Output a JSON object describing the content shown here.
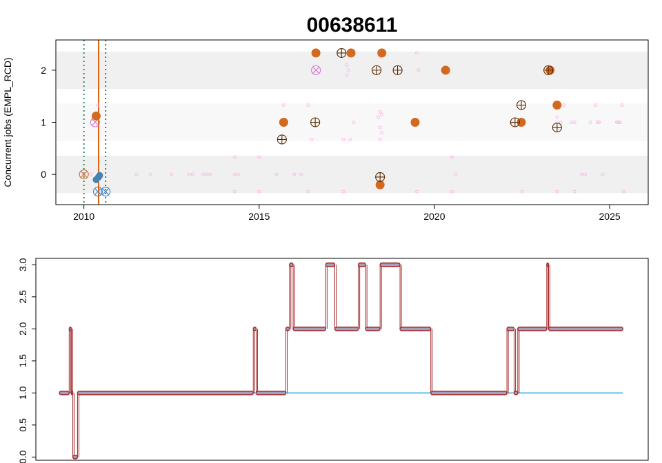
{
  "chart_data": [
    {
      "type": "scatter",
      "title": "00638611",
      "xlabel": "",
      "ylabel": "Concurrent jobs (EMPL_RCD)",
      "xlim": [
        2009.2,
        2026.1
      ],
      "ylim": [
        -0.58,
        2.58
      ],
      "x_ticks": [
        2010,
        2015,
        2020,
        2025
      ],
      "x_tick_labels": [
        "2010",
        "2015",
        "2020",
        "2025"
      ],
      "y_ticks": [
        0,
        1,
        2
      ],
      "y_tick_labels": [
        "0",
        "1",
        "2"
      ],
      "grid": false,
      "colors": {
        "band_dark": "#f0f0f0",
        "band_light": "#f8f8f8",
        "filled_orange": "#d2691e",
        "filled_blue": "#4682b4",
        "pink_small": "#ffb6ef",
        "violet_cross": "#da70d6",
        "teal_dotted": "#2e8b57",
        "orange_line": "#e06010",
        "crosshair": "#5a2a00"
      },
      "bands": [
        {
          "y0": -0.36,
          "y1": 0.36,
          "shade": "dark"
        },
        {
          "y0": 0.64,
          "y1": 1.36,
          "shade": "light"
        },
        {
          "y0": 1.64,
          "y1": 2.36,
          "shade": "dark"
        }
      ],
      "vlines": [
        {
          "x": 2010.0,
          "style": "dotted",
          "color": "teal"
        },
        {
          "x": 2010.42,
          "style": "solid",
          "color": "orange"
        },
        {
          "x": 2010.62,
          "style": "dotted",
          "color": "teal"
        }
      ],
      "series": [
        {
          "marker": "filled-orange",
          "points": [
            [
              2010.35,
              1.12
            ],
            [
              2016.62,
              2.33
            ],
            [
              2017.62,
              2.33
            ],
            [
              2018.5,
              2.33
            ],
            [
              2015.7,
              1.0
            ],
            [
              2019.45,
              1.0
            ],
            [
              2020.32,
              2.0
            ],
            [
              2022.48,
              1.0
            ],
            [
              2023.3,
              2.0
            ],
            [
              2023.5,
              1.33
            ],
            [
              2018.45,
              -0.2
            ]
          ]
        },
        {
          "marker": "filled-blue",
          "points": [
            [
              2010.35,
              -0.1
            ],
            [
              2010.45,
              -0.02
            ],
            [
              2010.42,
              -0.05
            ]
          ]
        },
        {
          "marker": "crosshair",
          "points": [
            [
              2017.35,
              2.33
            ],
            [
              2018.35,
              2.0
            ],
            [
              2018.95,
              2.0
            ],
            [
              2023.25,
              2.0
            ],
            [
              2016.6,
              1.0
            ],
            [
              2022.3,
              1.0
            ],
            [
              2022.48,
              1.33
            ],
            [
              2015.65,
              0.67
            ],
            [
              2023.5,
              0.9
            ],
            [
              2018.45,
              -0.05
            ]
          ]
        },
        {
          "marker": "circle-x-violet",
          "points": [
            [
              2016.62,
              2.0
            ],
            [
              2010.32,
              1.0
            ]
          ]
        },
        {
          "marker": "circle-x-orange",
          "points": [
            [
              2010.0,
              0.0
            ]
          ]
        },
        {
          "marker": "circle-x-blue",
          "points": [
            [
              2010.4,
              -0.33
            ],
            [
              2010.62,
              -0.33
            ]
          ]
        },
        {
          "marker": "pink-small",
          "points": [
            [
              2010.0,
              0.0
            ],
            [
              2010.2,
              0.0
            ],
            [
              2010.4,
              1.33
            ],
            [
              2011.5,
              0.0
            ],
            [
              2011.9,
              0.0
            ],
            [
              2012.5,
              0.0
            ],
            [
              2013.0,
              0.0
            ],
            [
              2013.1,
              0.0
            ],
            [
              2013.4,
              0.0
            ],
            [
              2013.5,
              0.0
            ],
            [
              2013.6,
              0.0
            ],
            [
              2014.3,
              0.0
            ],
            [
              2014.4,
              0.0
            ],
            [
              2014.3,
              0.33
            ],
            [
              2014.3,
              -0.33
            ],
            [
              2015.0,
              0.33
            ],
            [
              2015.0,
              -0.33
            ],
            [
              2015.7,
              1.33
            ],
            [
              2015.5,
              0.0
            ],
            [
              2016.0,
              0.0
            ],
            [
              2016.2,
              0.0
            ],
            [
              2016.4,
              1.33
            ],
            [
              2016.4,
              -0.33
            ],
            [
              2016.5,
              0.67
            ],
            [
              2017.4,
              0.67
            ],
            [
              2017.5,
              1.9
            ],
            [
              2017.55,
              2.0
            ],
            [
              2017.5,
              2.1
            ],
            [
              2017.6,
              0.67
            ],
            [
              2017.7,
              1.0
            ],
            [
              2017.4,
              -0.33
            ],
            [
              2018.4,
              1.1
            ],
            [
              2018.45,
              1.2
            ],
            [
              2018.5,
              1.15
            ],
            [
              2018.45,
              0.9
            ],
            [
              2018.5,
              0.8
            ],
            [
              2018.45,
              0.67
            ],
            [
              2018.45,
              2.25
            ],
            [
              2018.5,
              2.35
            ],
            [
              2019.5,
              2.33
            ],
            [
              2019.55,
              2.0
            ],
            [
              2019.5,
              -0.33
            ],
            [
              2020.5,
              0.33
            ],
            [
              2020.5,
              -0.33
            ],
            [
              2020.6,
              0.0
            ],
            [
              2022.2,
              1.0
            ],
            [
              2022.5,
              -0.33
            ],
            [
              2023.5,
              1.1
            ],
            [
              2023.6,
              1.0
            ],
            [
              2023.7,
              1.33
            ],
            [
              2023.9,
              1.0
            ],
            [
              2024.0,
              1.0
            ],
            [
              2024.2,
              0.0
            ],
            [
              2024.45,
              1.0
            ],
            [
              2024.6,
              1.33
            ],
            [
              2024.65,
              1.0
            ],
            [
              2024.7,
              1.0
            ],
            [
              2024.8,
              0.0
            ],
            [
              2025.2,
              1.0
            ],
            [
              2025.25,
              1.0
            ],
            [
              2025.3,
              1.0
            ],
            [
              2025.35,
              1.33
            ],
            [
              2025.4,
              -0.33
            ],
            [
              2024.0,
              -0.33
            ],
            [
              2023.5,
              -0.33
            ],
            [
              2024.3,
              0.0
            ]
          ]
        }
      ]
    },
    {
      "type": "line",
      "title": "",
      "xlabel": "",
      "ylabel": "",
      "xlim": [
        2009.2,
        2026.1
      ],
      "ylim": [
        -0.05,
        3.1
      ],
      "y_ticks": [
        0.0,
        0.5,
        1.0,
        1.5,
        2.0,
        2.5,
        3.0
      ],
      "y_tick_labels": [
        "0.0",
        "0.5",
        "1.0",
        "1.5",
        "2.0",
        "2.5",
        "3.0"
      ],
      "grid": false,
      "colors": {
        "light_line": "#87ceeb",
        "dark_line": "#a52a2a",
        "point_fill": "#a0a0c0"
      },
      "series": [
        {
          "name": "",
          "color": "light",
          "segments": [
            [
              [
                2009.85,
                1.0
              ],
              [
                2010.22,
                1.0
              ]
            ],
            [
              [
                2010.22,
                0.0
              ],
              [
                2010.35,
                0.0
              ]
            ],
            [
              [
                2010.35,
                1.0
              ],
              [
                2025.4,
                1.0
              ]
            ]
          ]
        },
        {
          "name": "",
          "color": "dark",
          "segments": [
            [
              [
                2009.85,
                1.0
              ],
              [
                2010.12,
                1.0
              ]
            ],
            [
              [
                2010.12,
                2.0
              ],
              [
                2010.18,
                2.0
              ]
            ],
            [
              [
                2010.18,
                1.0
              ],
              [
                2010.22,
                1.0
              ]
            ],
            [
              [
                2010.22,
                0.0
              ],
              [
                2010.35,
                0.0
              ]
            ],
            [
              [
                2010.35,
                1.0
              ],
              [
                2015.2,
                1.0
              ]
            ],
            [
              [
                2015.2,
                2.0
              ],
              [
                2015.28,
                2.0
              ]
            ],
            [
              [
                2015.28,
                1.0
              ],
              [
                2016.1,
                1.0
              ]
            ],
            [
              [
                2016.1,
                2.0
              ],
              [
                2016.2,
                2.0
              ]
            ],
            [
              [
                2016.2,
                3.0
              ],
              [
                2016.3,
                3.0
              ]
            ],
            [
              [
                2016.3,
                2.0
              ],
              [
                2017.2,
                2.0
              ]
            ],
            [
              [
                2017.2,
                3.0
              ],
              [
                2017.45,
                3.0
              ]
            ],
            [
              [
                2017.45,
                2.0
              ],
              [
                2018.1,
                2.0
              ]
            ],
            [
              [
                2018.1,
                3.0
              ],
              [
                2018.3,
                3.0
              ]
            ],
            [
              [
                2018.3,
                2.0
              ],
              [
                2018.7,
                2.0
              ]
            ],
            [
              [
                2018.7,
                3.0
              ],
              [
                2019.25,
                3.0
              ]
            ],
            [
              [
                2019.25,
                2.0
              ],
              [
                2020.1,
                2.0
              ]
            ],
            [
              [
                2020.1,
                1.0
              ],
              [
                2022.2,
                1.0
              ]
            ],
            [
              [
                2022.2,
                2.0
              ],
              [
                2022.4,
                2.0
              ]
            ],
            [
              [
                2022.4,
                1.0
              ],
              [
                2022.5,
                1.0
              ]
            ],
            [
              [
                2022.5,
                2.0
              ],
              [
                2023.3,
                2.0
              ]
            ],
            [
              [
                2023.3,
                3.0
              ],
              [
                2023.35,
                3.0
              ]
            ],
            [
              [
                2023.35,
                2.0
              ],
              [
                2025.4,
                2.0
              ]
            ]
          ]
        }
      ]
    }
  ]
}
